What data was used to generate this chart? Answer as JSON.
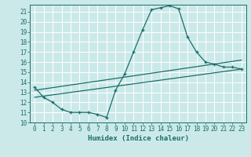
{
  "title": "",
  "xlabel": "Humidex (Indice chaleur)",
  "bg_color": "#cce9e9",
  "line_color": "#1a6e6a",
  "grid_color": "#ffffff",
  "xlim": [
    -0.5,
    23.5
  ],
  "ylim": [
    10,
    21.7
  ],
  "xticks": [
    0,
    1,
    2,
    3,
    4,
    5,
    6,
    7,
    8,
    9,
    10,
    11,
    12,
    13,
    14,
    15,
    16,
    17,
    18,
    19,
    20,
    21,
    22,
    23
  ],
  "yticks": [
    10,
    11,
    12,
    13,
    14,
    15,
    16,
    17,
    18,
    19,
    20,
    21
  ],
  "curve_x": [
    0,
    1,
    2,
    3,
    4,
    5,
    6,
    7,
    8,
    9,
    10,
    11,
    12,
    13,
    14,
    15,
    16,
    17,
    18,
    19,
    20,
    21,
    22,
    23
  ],
  "curve_y": [
    13.5,
    12.5,
    12.0,
    11.3,
    11.0,
    11.0,
    11.0,
    10.8,
    10.5,
    13.2,
    14.8,
    17.0,
    19.2,
    21.2,
    21.4,
    21.6,
    21.3,
    18.5,
    17.0,
    16.0,
    15.8,
    15.5,
    15.5,
    15.3
  ],
  "trend1_x": [
    0,
    23
  ],
  "trend1_y": [
    13.2,
    16.2
  ],
  "trend2_x": [
    0,
    23
  ],
  "trend2_y": [
    12.5,
    15.3
  ],
  "xlabel_fontsize": 6.5,
  "tick_fontsize": 5.5
}
